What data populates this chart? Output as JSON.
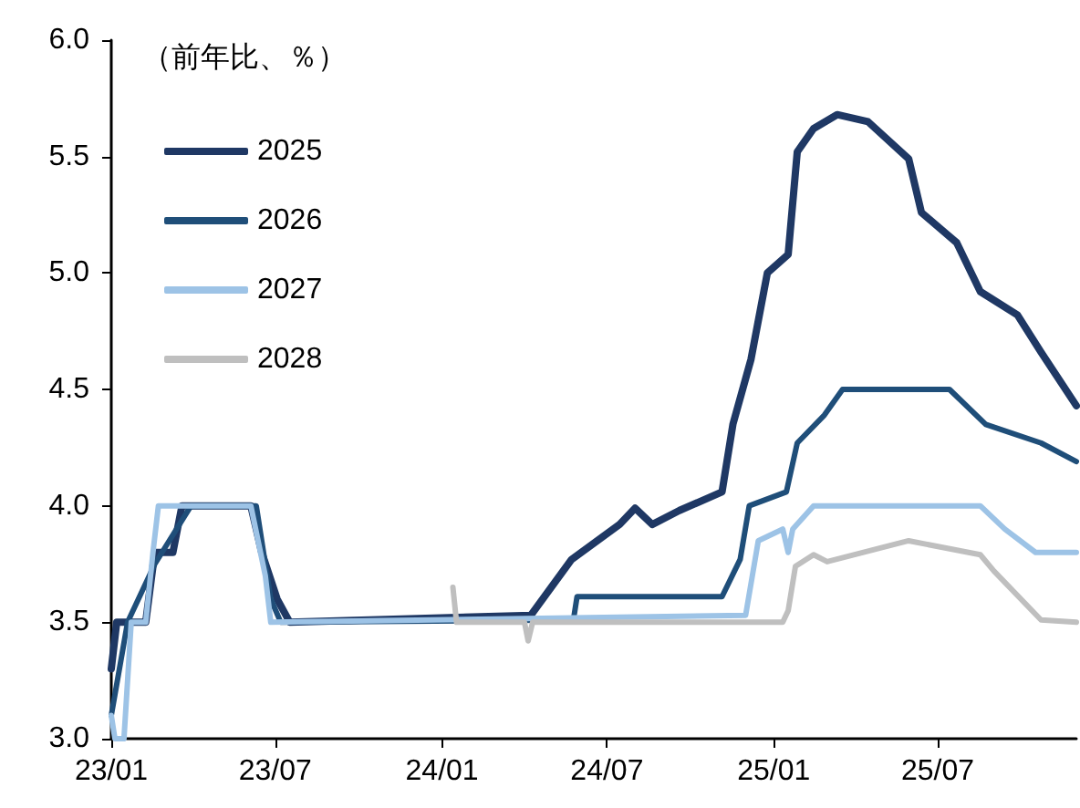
{
  "chart_data": {
    "type": "line",
    "ylabel": "（前年比、％）",
    "xlim": [
      "2023-01-01",
      "2025-12-01"
    ],
    "ylim": [
      3,
      6
    ],
    "xticks": [
      {
        "value": "2023-01-01",
        "label": "23/01"
      },
      {
        "value": "2023-07-01",
        "label": "23/07"
      },
      {
        "value": "2024-01-01",
        "label": "24/01"
      },
      {
        "value": "2024-07-01",
        "label": "24/07"
      },
      {
        "value": "2025-01-01",
        "label": "25/01"
      },
      {
        "value": "2025-07-01",
        "label": "25/07"
      }
    ],
    "yticks": [
      {
        "value": 3,
        "label": "3.0"
      },
      {
        "value": 3.5,
        "label": "3.5"
      },
      {
        "value": 4,
        "label": "4.0"
      },
      {
        "value": 4.5,
        "label": "4.5"
      },
      {
        "value": 5,
        "label": "5.0"
      },
      {
        "value": 5.5,
        "label": "5.5"
      },
      {
        "value": 6,
        "label": "6.0"
      }
    ],
    "grid": false,
    "legend": "top left",
    "marker": "none",
    "line_style": "solid",
    "series": [
      {
        "name": "2025",
        "color": "#1f3864",
        "x": [
          "2023-01-01",
          "2023-01-07",
          "2023-02-08",
          "2023-02-18",
          "2023-03-10",
          "2023-03-20",
          "2023-06-04",
          "2023-06-16",
          "2023-07-03",
          "2023-07-17",
          "2024-04-08",
          "2024-05-23",
          "2024-07-15",
          "2024-08-01",
          "2024-08-20",
          "2024-09-19",
          "2024-11-05",
          "2024-11-17",
          "2024-12-07",
          "2024-12-25",
          "2025-01-17",
          "2025-01-27",
          "2025-02-14",
          "2025-03-12",
          "2025-04-15",
          "2025-05-30",
          "2025-06-13",
          "2025-07-22",
          "2025-08-17",
          "2025-09-27",
          "2025-10-23",
          "2025-12-01"
        ],
        "values": [
          3.3,
          3.5,
          3.5,
          3.8,
          3.8,
          4.0,
          4.0,
          3.8,
          3.6,
          3.5,
          3.53,
          3.77,
          3.92,
          3.99,
          3.92,
          3.98,
          4.06,
          4.35,
          4.63,
          5.0,
          5.08,
          5.52,
          5.62,
          5.68,
          5.65,
          5.49,
          5.26,
          5.13,
          4.92,
          4.82,
          4.66,
          4.43
        ]
      },
      {
        "name": "2026",
        "color": "#1f4e79",
        "x": [
          "2023-01-01",
          "2023-01-19",
          "2023-02-18",
          "2023-03-30",
          "2023-06-10",
          "2023-06-26",
          "2023-07-07",
          "2024-05-25",
          "2024-05-29",
          "2024-11-05",
          "2024-11-25",
          "2024-12-05",
          "2025-01-15",
          "2025-01-27",
          "2025-02-26",
          "2025-03-18",
          "2025-07-14",
          "2025-08-23",
          "2025-10-23",
          "2025-12-01"
        ],
        "values": [
          3.1,
          3.5,
          3.75,
          4.0,
          4.0,
          3.6,
          3.5,
          3.51,
          3.61,
          3.61,
          3.77,
          4.0,
          4.06,
          4.27,
          4.39,
          4.5,
          4.5,
          4.35,
          4.27,
          4.19
        ]
      },
      {
        "name": "2027",
        "color": "#9dc3e6",
        "x": [
          "2023-01-01",
          "2023-01-05",
          "2023-01-15",
          "2023-01-23",
          "2023-02-08",
          "2023-02-16",
          "2023-02-22",
          "2023-06-04",
          "2023-06-20",
          "2023-06-26",
          "2024-12-01",
          "2024-12-15",
          "2025-01-11",
          "2025-01-17",
          "2025-01-22",
          "2025-02-14",
          "2025-08-17",
          "2025-09-13",
          "2025-10-17",
          "2025-12-01"
        ],
        "values": [
          3.1,
          3.0,
          3.0,
          3.5,
          3.5,
          3.8,
          4.0,
          4.0,
          3.7,
          3.5,
          3.53,
          3.85,
          3.9,
          3.8,
          3.9,
          4.0,
          4.0,
          3.9,
          3.8,
          3.8
        ]
      },
      {
        "name": "2028",
        "color": "#bfbfbf",
        "x": [
          "2024-01-13",
          "2024-01-17",
          "2024-04-01",
          "2024-04-05",
          "2024-04-10",
          "2025-01-11",
          "2025-01-17",
          "2025-01-25",
          "2025-02-14",
          "2025-03-01",
          "2025-05-30",
          "2025-08-17",
          "2025-09-01",
          "2025-10-23",
          "2025-12-01"
        ],
        "values": [
          3.65,
          3.5,
          3.5,
          3.42,
          3.5,
          3.5,
          3.55,
          3.74,
          3.79,
          3.76,
          3.85,
          3.79,
          3.72,
          3.51,
          3.5
        ]
      }
    ]
  }
}
